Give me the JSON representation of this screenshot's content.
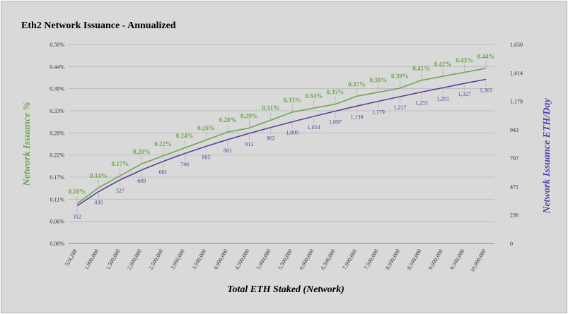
{
  "chart_data": {
    "type": "line",
    "title": "Eth2 Network Issuance - Annualized",
    "xlabel": "Total ETH Staked (Network)",
    "ylabel_left": "Network Issuance %",
    "ylabel_right": "Network Issuance ETH/Day",
    "x_tick_labels": [
      "524,288",
      "1,000,000",
      "1,500,000",
      "2,000,000",
      "2,500,000",
      "3,000,000",
      "3,500,000",
      "4,000,000",
      "4,500,000",
      "5,000,000",
      "5,500,000",
      "6,000,000",
      "6,500,000",
      "7,000,000",
      "7,500,000",
      "8,000,000",
      "8,500,000",
      "9,000,000",
      "9,500,000",
      "10,000,000"
    ],
    "y_left_ticks": [
      "0.00%",
      "0.06%",
      "0.11%",
      "0.17%",
      "0.22%",
      "0.28%",
      "0.33%",
      "0.39%",
      "0.44%",
      "0.50%"
    ],
    "y_right_ticks": [
      "0",
      "236",
      "471",
      "707",
      "943",
      "1,179",
      "1,414",
      "1,650"
    ],
    "ylim_left": [
      0,
      0.5
    ],
    "ylim_right": [
      0,
      1650
    ],
    "grid": true,
    "legend": "none",
    "series": [
      {
        "axis": "left",
        "color": "#6aa84f",
        "values": [
          0.1,
          0.14,
          0.17,
          0.2,
          0.22,
          0.24,
          0.26,
          0.28,
          0.29,
          0.31,
          0.33,
          0.34,
          0.35,
          0.37,
          0.38,
          0.39,
          0.41,
          0.42,
          0.43,
          0.44
        ],
        "labels": [
          "0.10%",
          "0.14%",
          "0.17%",
          "0.20%",
          "0.22%",
          "0.24%",
          "0.26%",
          "0.28%",
          "0.29%",
          "0.31%",
          "0.33%",
          "0.34%",
          "0.35%",
          "0.37%",
          "0.38%",
          "0.39%",
          "0.41%",
          "0.42%",
          "0.43%",
          "0.44%"
        ]
      },
      {
        "axis": "right",
        "color": "#5b3fa0",
        "values": [
          312,
          430,
          527,
          609,
          681,
          746,
          805,
          861,
          913,
          962,
          1009,
          1054,
          1097,
          1139,
          1179,
          1217,
          1255,
          1291,
          1327,
          1361
        ],
        "labels": [
          "312",
          "430",
          "527",
          "609",
          "681",
          "746",
          "805",
          "861",
          "913",
          "962",
          "1,009",
          "1,054",
          "1,097",
          "1,139",
          "1,179",
          "1,217",
          "1,255",
          "1,291",
          "1,327",
          "1,361"
        ]
      }
    ]
  }
}
